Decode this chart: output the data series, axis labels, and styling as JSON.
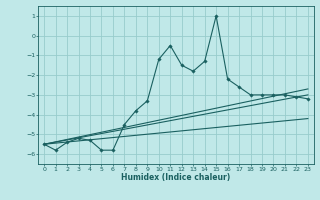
{
  "title": "",
  "xlabel": "Humidex (Indice chaleur)",
  "bg_color": "#c0e8e8",
  "grid_color": "#98cccc",
  "line_color": "#1a6060",
  "xlim": [
    -0.5,
    23.5
  ],
  "ylim": [
    -6.5,
    1.5
  ],
  "xticks": [
    0,
    1,
    2,
    3,
    4,
    5,
    6,
    7,
    8,
    9,
    10,
    11,
    12,
    13,
    14,
    15,
    16,
    17,
    18,
    19,
    20,
    21,
    22,
    23
  ],
  "yticks": [
    1,
    0,
    -1,
    -2,
    -3,
    -4,
    -5,
    -6
  ],
  "main_x": [
    0,
    1,
    2,
    3,
    4,
    5,
    6,
    7,
    8,
    9,
    10,
    11,
    12,
    13,
    14,
    15,
    16,
    17,
    18,
    19,
    20,
    21,
    22,
    23
  ],
  "main_y": [
    -5.5,
    -5.8,
    -5.4,
    -5.2,
    -5.3,
    -5.8,
    -5.8,
    -4.5,
    -3.8,
    -3.3,
    -1.2,
    -0.5,
    -1.5,
    -1.8,
    -1.3,
    1.0,
    -2.2,
    -2.6,
    -3.0,
    -3.0,
    -3.0,
    -3.0,
    -3.1,
    -3.2
  ],
  "line2_x": [
    0,
    23
  ],
  "line2_y": [
    -5.5,
    -3.0
  ],
  "line3_x": [
    0,
    23
  ],
  "line3_y": [
    -5.5,
    -2.7
  ],
  "line4_x": [
    0,
    23
  ],
  "line4_y": [
    -5.5,
    -4.2
  ]
}
